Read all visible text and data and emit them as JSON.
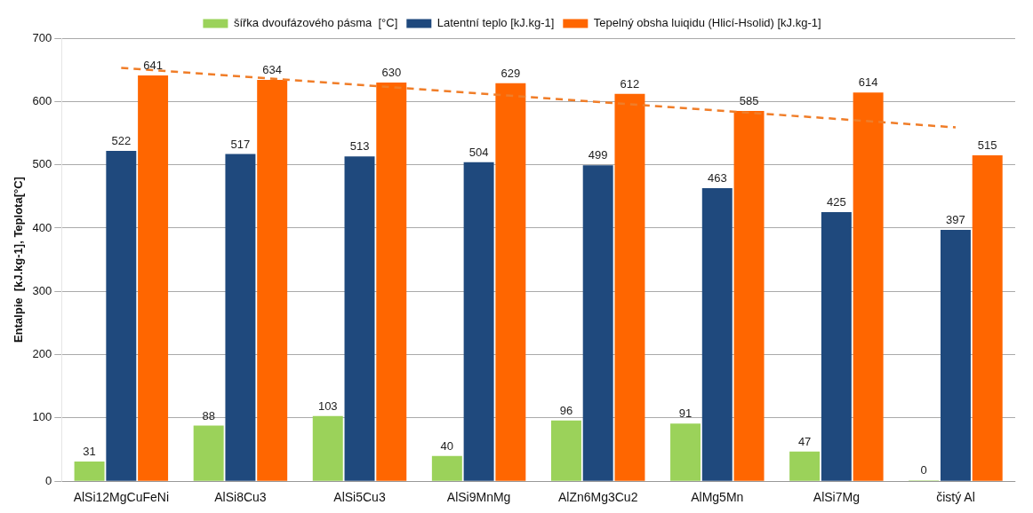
{
  "chart_data": {
    "type": "bar",
    "ylabel": "Entalpie  [kJ.kg-1], Teplota[°C]",
    "categories": [
      "AlSi12MgCuFeNi",
      "AlSi8Cu3",
      "AlSi5Cu3",
      "AlSi9MnMg",
      "AlZn6Mg3Cu2",
      "AlMg5Mn",
      "AlSi7Mg",
      "čistý Al"
    ],
    "series": [
      {
        "name": "šířka dvoufázového pásma  [°C]",
        "color": "#9bd25a",
        "values": [
          31,
          88,
          103,
          40,
          96,
          91,
          47,
          0
        ],
        "value_labels": [
          "31",
          "88",
          "103",
          "40",
          "96",
          "91",
          "47",
          "0"
        ]
      },
      {
        "name": "Latentní teplo [kJ.kg-1]",
        "color": "#1f497d",
        "values": [
          522,
          517,
          513,
          504,
          499,
          463,
          425,
          397
        ],
        "value_labels": [
          "522",
          "517",
          "513",
          "504",
          "499",
          "463",
          "425",
          "397"
        ]
      },
      {
        "name": "Tepelný obsha luiqidu (Hlicí-Hsolid) [kJ.kg-1]",
        "color": "#ff6600",
        "values": [
          641,
          634,
          630,
          629,
          612,
          585,
          614,
          515
        ],
        "value_labels": [
          "641",
          "634",
          "630",
          "629",
          "612",
          "585",
          "614",
          "515"
        ]
      },
      {
        "type": "line",
        "color": "#f07d28",
        "line_style": "dashed",
        "marker": "none",
        "x": [
          "AlSi12MgCuFeNi",
          "čistý Al"
        ],
        "values": [
          653,
          559
        ]
      }
    ],
    "ylim": [
      0,
      700
    ],
    "yticks": [
      0,
      100,
      200,
      300,
      400,
      500,
      600,
      700
    ],
    "grid": "y",
    "legend": "top"
  }
}
